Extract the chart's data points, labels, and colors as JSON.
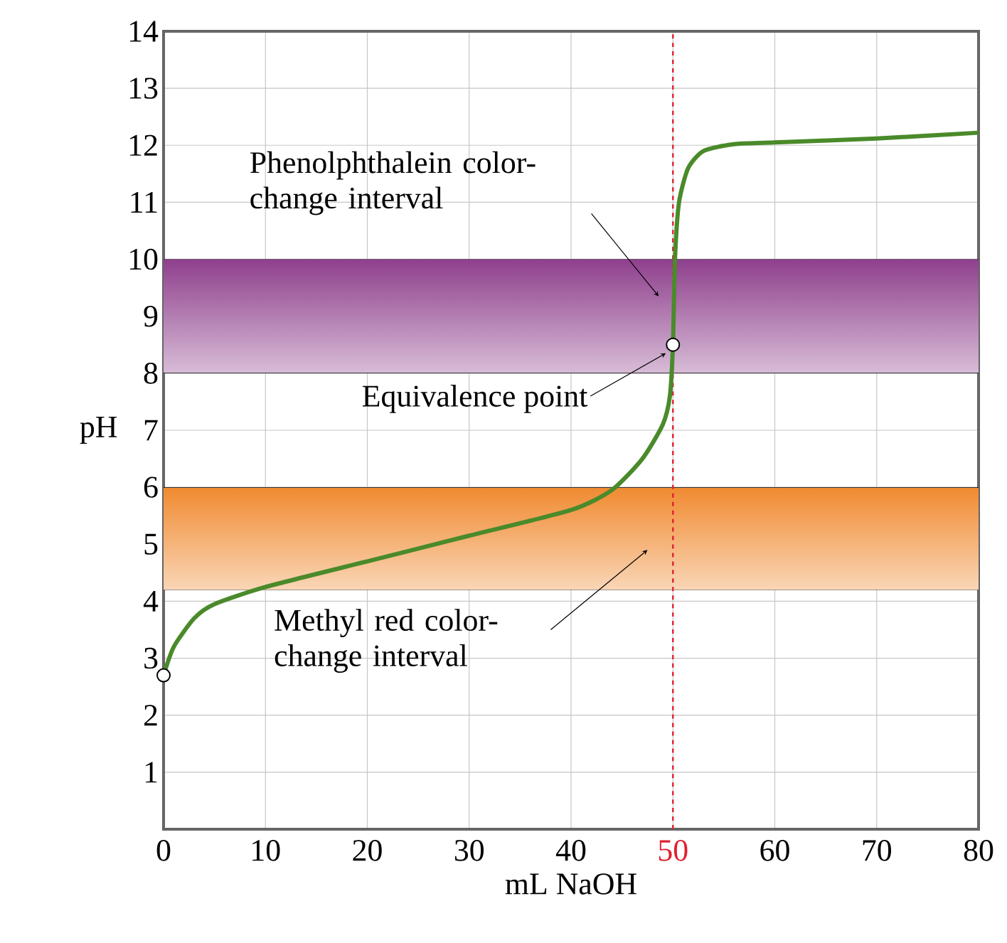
{
  "chart_data": {
    "type": "line",
    "xlabel": "mL NaOH",
    "ylabel": "pH",
    "xlim": [
      0,
      80
    ],
    "ylim": [
      0,
      14
    ],
    "xticks": [
      0,
      10,
      20,
      30,
      40,
      50,
      60,
      70,
      80
    ],
    "yticks": [
      1,
      2,
      3,
      4,
      5,
      6,
      7,
      8,
      9,
      10,
      11,
      12,
      13,
      14
    ],
    "grid": true,
    "series": [
      {
        "color": "#4a8a2a",
        "x": [
          0,
          1,
          3,
          5,
          10,
          20,
          30,
          40,
          44,
          47,
          49,
          49.7,
          50,
          50.2,
          50.6,
          51.5,
          53,
          56,
          60,
          70,
          80
        ],
        "values": [
          2.7,
          3.2,
          3.7,
          3.95,
          4.25,
          4.7,
          5.15,
          5.6,
          5.95,
          6.5,
          7.1,
          7.6,
          8.5,
          10,
          11,
          11.6,
          11.9,
          12.02,
          12.05,
          12.12,
          12.22
        ]
      },
      {
        "type": "scatter",
        "color": "#000000",
        "marker": "circle",
        "x": [
          0,
          50
        ],
        "values": [
          2.7,
          8.5
        ]
      }
    ],
    "ref_lines": [
      {
        "axis": "x",
        "value": 50,
        "color": "#e02030",
        "line_style": "dashed"
      }
    ],
    "bands": [
      {
        "axis": "y",
        "from": 8,
        "to": 10,
        "label": "Phenolphthalein color-change interval",
        "color": "#8e3f8c"
      },
      {
        "axis": "y",
        "from": 4.2,
        "to": 6,
        "label": "Methyl red color-change interval",
        "color": "#f08a30"
      }
    ],
    "annotations": [
      "Equivalence point"
    ]
  }
}
